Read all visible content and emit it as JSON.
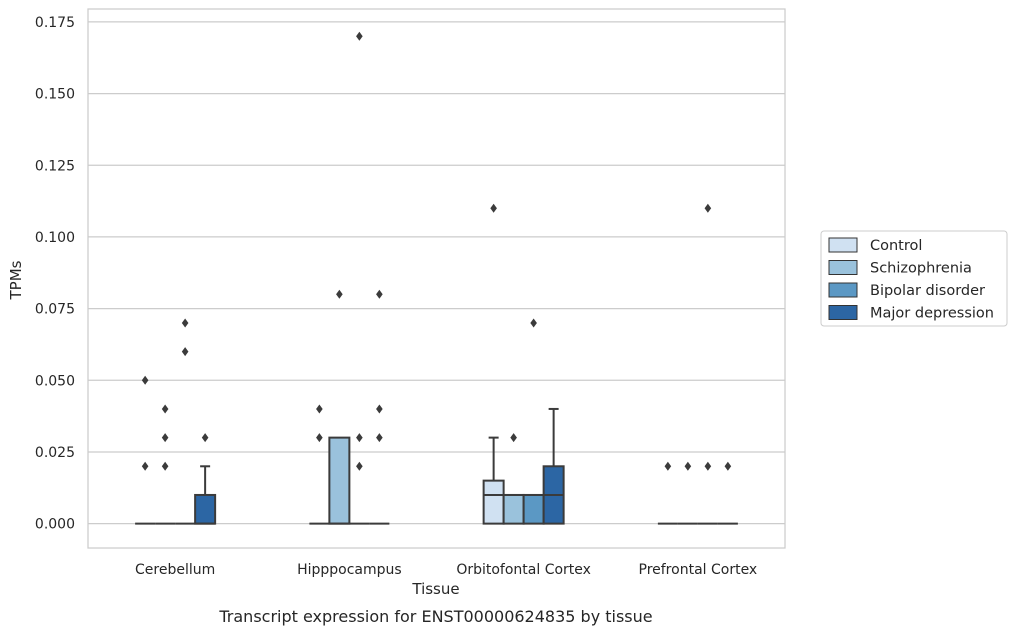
{
  "chart_data": {
    "type": "box",
    "title": "",
    "caption": "Transcript expression for ENST00000624835 by tissue",
    "xlabel": "Tissue",
    "ylabel": "TPMs",
    "ylim": [
      -0.0085,
      0.1795
    ],
    "yticks": [
      "0.000",
      "0.025",
      "0.050",
      "0.075",
      "0.100",
      "0.125",
      "0.150",
      "0.175"
    ],
    "ytick_values": [
      0.0,
      0.025,
      0.05,
      0.075,
      0.1,
      0.125,
      0.15,
      0.175
    ],
    "grid": "horizontal",
    "legend_position": "right",
    "categories": [
      "Cerebellum",
      "Hipppocampus",
      "Orbitofontal Cortex",
      "Prefrontal Cortex"
    ],
    "series": [
      {
        "name": "Control",
        "color": "#d0e1f2",
        "boxes": [
          {
            "q1": 0,
            "median": 0,
            "q3": 0,
            "whisker_low": 0,
            "whisker_high": 0,
            "outliers": [
              0.02,
              0.05
            ]
          },
          {
            "q1": 0,
            "median": 0,
            "q3": 0,
            "whisker_low": 0,
            "whisker_high": 0,
            "outliers": [
              0.03,
              0.04
            ]
          },
          {
            "q1": 0,
            "median": 0.01,
            "q3": 0.015,
            "whisker_low": 0,
            "whisker_high": 0.03,
            "outliers": [
              0.11
            ]
          },
          {
            "q1": 0,
            "median": 0,
            "q3": 0,
            "whisker_low": 0,
            "whisker_high": 0,
            "outliers": [
              0.02
            ]
          }
        ]
      },
      {
        "name": "Schizophrenia",
        "color": "#9ac2dc",
        "boxes": [
          {
            "q1": 0,
            "median": 0,
            "q3": 0,
            "whisker_low": 0,
            "whisker_high": 0,
            "outliers": [
              0.02,
              0.03,
              0.04
            ]
          },
          {
            "q1": 0,
            "median": 0,
            "q3": 0.03,
            "whisker_low": 0,
            "whisker_high": 0.03,
            "outliers": [
              0.08
            ]
          },
          {
            "q1": 0,
            "median": 0.01,
            "q3": 0.01,
            "whisker_low": 0,
            "whisker_high": 0.01,
            "outliers": [
              0.03
            ]
          },
          {
            "q1": 0,
            "median": 0,
            "q3": 0,
            "whisker_low": 0,
            "whisker_high": 0,
            "outliers": [
              0.02
            ]
          }
        ]
      },
      {
        "name": "Bipolar disorder",
        "color": "#5b98c4",
        "boxes": [
          {
            "q1": 0,
            "median": 0,
            "q3": 0,
            "whisker_low": 0,
            "whisker_high": 0,
            "outliers": [
              0.06,
              0.07
            ]
          },
          {
            "q1": 0,
            "median": 0,
            "q3": 0,
            "whisker_low": 0,
            "whisker_high": 0,
            "outliers": [
              0.02,
              0.03,
              0.17
            ]
          },
          {
            "q1": 0,
            "median": 0.01,
            "q3": 0.01,
            "whisker_low": 0,
            "whisker_high": 0.01,
            "outliers": [
              0.07
            ]
          },
          {
            "q1": 0,
            "median": 0,
            "q3": 0,
            "whisker_low": 0,
            "whisker_high": 0,
            "outliers": [
              0.11,
              0.02
            ]
          }
        ]
      },
      {
        "name": "Major depression",
        "color": "#2c66a4",
        "boxes": [
          {
            "q1": 0,
            "median": 0,
            "q3": 0.01,
            "whisker_low": 0,
            "whisker_high": 0.02,
            "outliers": [
              0.03
            ]
          },
          {
            "q1": 0,
            "median": 0,
            "q3": 0,
            "whisker_low": 0,
            "whisker_high": 0,
            "outliers": [
              0.03,
              0.04,
              0.08
            ]
          },
          {
            "q1": 0,
            "median": 0.01,
            "q3": 0.02,
            "whisker_low": 0,
            "whisker_high": 0.04,
            "outliers": []
          },
          {
            "q1": 0,
            "median": 0,
            "q3": 0,
            "whisker_low": 0,
            "whisker_high": 0,
            "outliers": [
              0.02
            ]
          }
        ]
      }
    ]
  }
}
